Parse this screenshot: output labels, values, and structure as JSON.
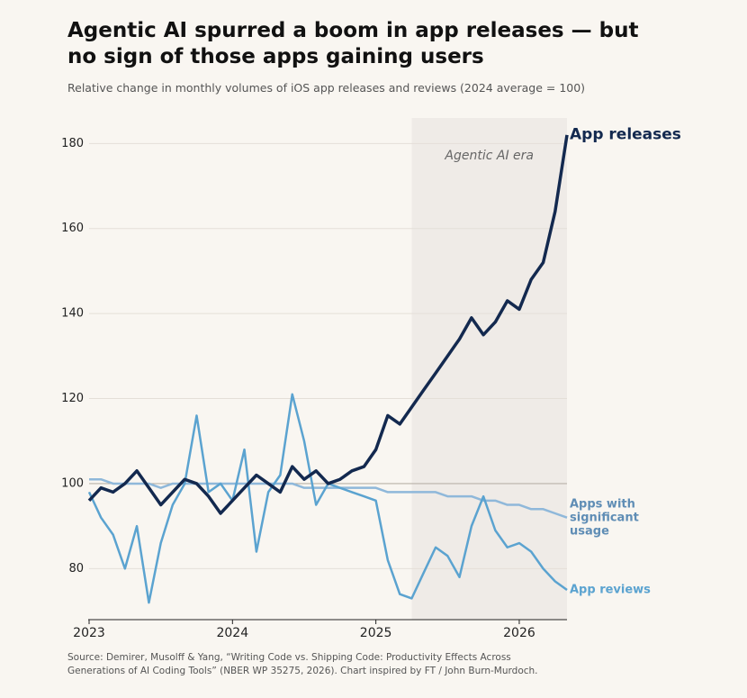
{
  "chart_data": {
    "type": "line",
    "title": "Agentic AI spurred a boom in app releases — but no sign of those apps gaining users",
    "subtitle": "Relative change in monthly volumes of iOS app releases and reviews (2024 average = 100)",
    "source": "Source: Demirer, Musolff & Yang, “Writing Code vs. Shipping Code: Productivity Effects Across Generations of AI Coding Tools” (NBER WP 35275, 2026).  Chart inspired by FT / John Burn-Murdoch.",
    "x": [
      2023,
      2023.083,
      2023.167,
      2023.25,
      2023.333,
      2023.417,
      2023.5,
      2023.583,
      2023.667,
      2023.75,
      2023.833,
      2023.917,
      2024,
      2024.083,
      2024.167,
      2024.25,
      2024.333,
      2024.417,
      2024.5,
      2024.583,
      2024.667,
      2024.75,
      2024.833,
      2024.917,
      2025,
      2025.083,
      2025.167,
      2025.25,
      2025.333,
      2025.417,
      2025.5,
      2025.583,
      2025.667,
      2025.75,
      2025.833,
      2025.917,
      2026,
      2026.083,
      2026.167,
      2026.25,
      2026.333
    ],
    "series": [
      {
        "name": "Apps with significant usage",
        "color": "#8fb8da",
        "values": [
          101,
          101,
          100,
          100,
          100,
          100,
          99,
          100,
          100,
          100,
          100,
          100,
          100,
          100,
          100,
          100,
          100,
          100,
          99,
          99,
          99,
          99,
          99,
          99,
          99,
          98,
          98,
          98,
          98,
          98,
          97,
          97,
          97,
          96,
          96,
          95,
          95,
          94,
          94,
          93,
          92
        ]
      },
      {
        "name": "App reviews",
        "color": "#5ba3d0",
        "values": [
          98,
          92,
          88,
          80,
          90,
          72,
          86,
          95,
          100,
          116,
          98,
          100,
          96,
          108,
          84,
          98,
          102,
          121,
          110,
          95,
          100,
          99,
          98,
          97,
          96,
          82,
          74,
          73,
          79,
          85,
          83,
          78,
          90,
          97,
          89,
          85,
          86,
          84,
          80,
          77,
          75
        ]
      },
      {
        "name": "App releases",
        "color": "#13294f",
        "values": [
          96,
          99,
          98,
          100,
          103,
          99,
          95,
          98,
          101,
          100,
          97,
          93,
          96,
          99,
          102,
          100,
          98,
          104,
          101,
          103,
          100,
          101,
          103,
          104,
          108,
          116,
          114,
          118,
          122,
          126,
          130,
          134,
          139,
          135,
          138,
          143,
          141,
          148,
          152,
          164,
          182
        ]
      }
    ],
    "xlim": [
      2023,
      2026.333
    ],
    "xticks": [
      2023,
      2024,
      2025,
      2026
    ],
    "ylim": [
      68,
      186
    ],
    "yticks": [
      80,
      100,
      120,
      140,
      160,
      180
    ],
    "grid": true,
    "reference_line": 100,
    "shade": {
      "x": [
        2025.25,
        2026.333
      ],
      "label": "Agentic AI era"
    }
  }
}
